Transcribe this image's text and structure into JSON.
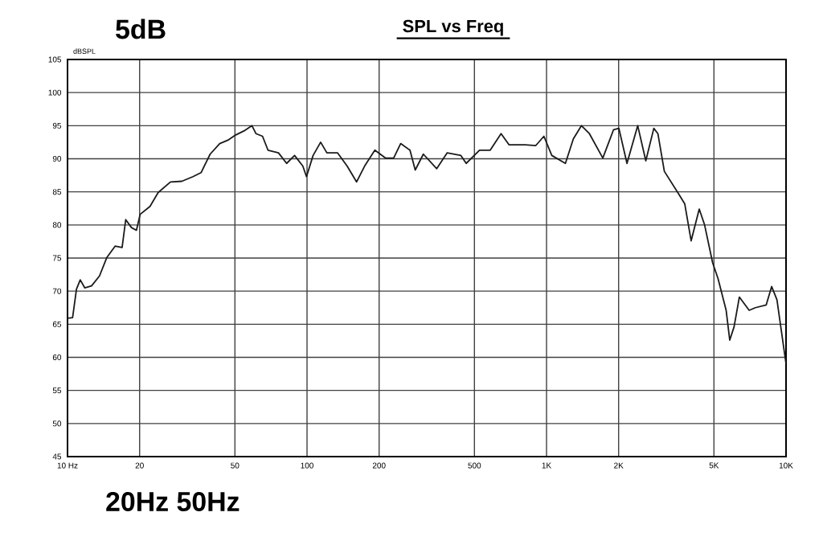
{
  "chart_data": {
    "type": "line",
    "title": "SPL vs Freq",
    "ylabel": "dBSPL",
    "annotations": [
      "5dB",
      "20Hz 50Hz"
    ],
    "x": [
      10,
      10.5,
      10.9,
      11.3,
      11.8,
      12.6,
      13.6,
      14.6,
      15.8,
      16.9,
      17.5,
      18.5,
      19.4,
      20.1,
      22.1,
      23.9,
      26.9,
      30,
      33.4,
      36.1,
      39.4,
      43.2,
      46.7,
      50.4,
      54.5,
      58.9,
      61.2,
      65.2,
      68.7,
      76,
      82.2,
      88.7,
      96,
      99.5,
      106,
      114,
      121,
      134,
      147,
      161,
      174,
      192,
      213,
      230,
      246,
      269,
      283,
      306,
      348,
      385,
      439,
      462,
      525,
      582,
      646,
      698,
      815,
      902,
      975,
      1052,
      1199,
      1294,
      1399,
      1510,
      1718,
      1905,
      2005,
      2167,
      2403,
      2597,
      2805,
      2917,
      3104,
      3532,
      3776,
      4016,
      4341,
      4571,
      4936,
      5200,
      5623,
      5821,
      6067,
      6383,
      7015,
      7447,
      8260,
      8707,
      9163,
      9750,
      10000
    ],
    "series": [
      {
        "color": "#1a1a1a",
        "values": [
          65.9,
          66.0,
          70.3,
          71.7,
          70.5,
          70.8,
          72.3,
          75.1,
          76.8,
          76.6,
          80.8,
          79.6,
          79.2,
          81.6,
          82.8,
          84.9,
          86.5,
          86.6,
          87.3,
          87.9,
          90.7,
          92.3,
          92.8,
          93.6,
          94.2,
          95.0,
          93.8,
          93.4,
          91.3,
          90.9,
          89.3,
          90.5,
          88.9,
          87.3,
          90.5,
          92.5,
          90.9,
          90.9,
          88.9,
          86.5,
          88.9,
          91.3,
          90.1,
          90.1,
          92.3,
          91.3,
          88.3,
          90.7,
          88.5,
          90.9,
          90.5,
          89.3,
          91.3,
          91.3,
          93.8,
          92.1,
          92.1,
          92.0,
          93.4,
          90.5,
          89.3,
          93.0,
          95.0,
          93.8,
          90.1,
          94.4,
          94.6,
          89.3,
          95.0,
          89.7,
          94.6,
          93.8,
          88.1,
          84.9,
          83.2,
          77.6,
          82.4,
          80.0,
          74.3,
          71.9,
          67.1,
          62.6,
          64.6,
          69.1,
          67.1,
          67.5,
          67.9,
          70.7,
          68.7,
          61.8,
          59.0
        ]
      }
    ],
    "xlim": [
      10,
      10000
    ],
    "ylim": [
      45,
      105
    ],
    "xticks": [
      {
        "value": 10,
        "label": "10 Hz"
      },
      20,
      50,
      100,
      200,
      500,
      {
        "value": 1000,
        "label": "1K"
      },
      {
        "value": 2000,
        "label": "2K"
      },
      {
        "value": 5000,
        "label": "5K"
      },
      {
        "value": 10000,
        "label": "10K"
      }
    ],
    "yticks": [
      45,
      50,
      55,
      60,
      65,
      70,
      75,
      80,
      85,
      90,
      95,
      100,
      105
    ],
    "log": "x",
    "grid": true,
    "marker": "none",
    "line_style": "solid"
  }
}
